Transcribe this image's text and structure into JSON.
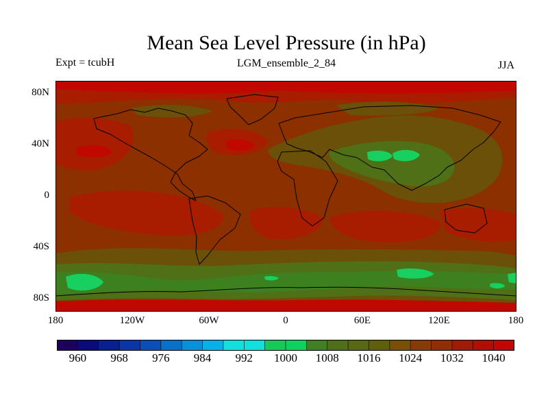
{
  "header": {
    "title": "Mean Sea Level Pressure (in hPa)",
    "experiment": "Expt = tcubH",
    "ensemble": "LGM_ensemble_2_84",
    "season": "JJA"
  },
  "axes": {
    "lat_labels": [
      "80N",
      "40N",
      "0",
      "40S",
      "80S"
    ],
    "lon_labels": [
      "180",
      "120W",
      "60W",
      "0",
      "60E",
      "120E",
      "180"
    ]
  },
  "colorbar": {
    "labels": [
      "960",
      "968",
      "976",
      "984",
      "992",
      "1000",
      "1008",
      "1016",
      "1024",
      "1032",
      "1040"
    ],
    "colors": [
      "#1c0060",
      "#0a0a78",
      "#082090",
      "#0838a8",
      "#0850b8",
      "#0870c8",
      "#0890d8",
      "#08b0e8",
      "#10e0e0",
      "#10e0e0",
      "#18c858",
      "#10d060",
      "#408020",
      "#507018",
      "#586810",
      "#606008",
      "#785000",
      "#883a00",
      "#903000",
      "#a01c00",
      "#b01000",
      "#c00800"
    ]
  },
  "map_colors": {
    "base": "#8c3000",
    "high": "#a81c00",
    "very_high": "#c00800",
    "mid": "#6a5008",
    "low": "#507018",
    "lower": "#3c8020",
    "lowest": "#18d060",
    "coast": "#000000"
  }
}
